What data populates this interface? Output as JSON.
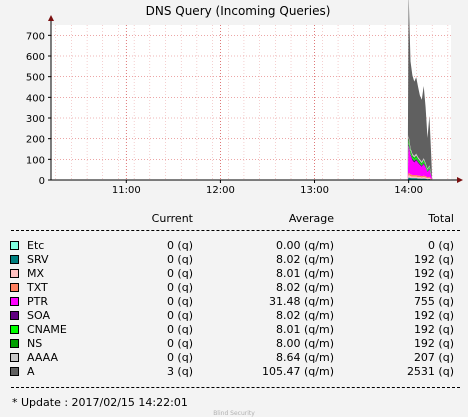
{
  "chart_data": {
    "type": "area",
    "title": "DNS Query (Incoming Queries)",
    "yticks": [
      0,
      100,
      200,
      300,
      400,
      500,
      600,
      700
    ],
    "ylim": [
      0,
      750
    ],
    "xticks": [
      "11:00",
      "12:00",
      "13:00",
      "14:00"
    ],
    "xrange_hours": [
      10.2,
      14.45
    ],
    "grid": true,
    "x": [
      13.99,
      14.0,
      14.02,
      14.04,
      14.06,
      14.08,
      14.1,
      14.12,
      14.14,
      14.16,
      14.18,
      14.2,
      14.22,
      14.24,
      14.25
    ],
    "series": [
      {
        "name": "A",
        "color": "#606060",
        "values": [
          0,
          690,
          420,
          380,
          360,
          370,
          340,
          310,
          300,
          350,
          270,
          150,
          240,
          90,
          0
        ]
      },
      {
        "name": "AAAA",
        "color": "#c8c8c8",
        "values": [
          0,
          14,
          10,
          8,
          8,
          9,
          8,
          7,
          7,
          8,
          6,
          4,
          5,
          3,
          0
        ]
      },
      {
        "name": "NS",
        "color": "#00a000",
        "values": [
          0,
          12,
          9,
          8,
          8,
          8,
          7,
          7,
          6,
          7,
          6,
          4,
          5,
          2,
          0
        ]
      },
      {
        "name": "CNAME",
        "color": "#00ff00",
        "values": [
          0,
          12,
          9,
          8,
          8,
          8,
          7,
          7,
          6,
          7,
          6,
          4,
          5,
          2,
          0
        ]
      },
      {
        "name": "SOA",
        "color": "#600080",
        "values": [
          0,
          12,
          9,
          8,
          8,
          8,
          7,
          7,
          6,
          7,
          6,
          4,
          5,
          2,
          0
        ]
      },
      {
        "name": "PTR",
        "color": "#ff00ff",
        "values": [
          0,
          130,
          90,
          70,
          60,
          70,
          60,
          50,
          45,
          55,
          40,
          25,
          35,
          15,
          0
        ]
      },
      {
        "name": "TXT",
        "color": "#ff8060",
        "values": [
          0,
          12,
          9,
          8,
          8,
          8,
          7,
          7,
          6,
          7,
          6,
          4,
          5,
          2,
          0
        ]
      },
      {
        "name": "MX",
        "color": "#ffc0c0",
        "values": [
          0,
          12,
          9,
          8,
          8,
          8,
          7,
          7,
          6,
          7,
          6,
          4,
          5,
          2,
          0
        ]
      },
      {
        "name": "SRV",
        "color": "#008080",
        "values": [
          0,
          12,
          9,
          8,
          8,
          8,
          7,
          7,
          6,
          7,
          6,
          4,
          5,
          2,
          0
        ]
      },
      {
        "name": "Etc",
        "color": "#80ffe0",
        "values": [
          0,
          0,
          0,
          0,
          0,
          0,
          0,
          0,
          0,
          0,
          0,
          0,
          0,
          0,
          0
        ]
      }
    ]
  },
  "table": {
    "headers": {
      "current": "Current",
      "average": "Average",
      "total": "Total"
    },
    "rows": [
      {
        "label": "Etc",
        "color": "#80ffe0",
        "current": "0 (q)",
        "average": "0.00 (q/m)",
        "total": "0 (q)"
      },
      {
        "label": "SRV",
        "color": "#008080",
        "current": "0 (q)",
        "average": "8.02 (q/m)",
        "total": "192 (q)"
      },
      {
        "label": "MX",
        "color": "#ffc0c0",
        "current": "0 (q)",
        "average": "8.01 (q/m)",
        "total": "192 (q)"
      },
      {
        "label": "TXT",
        "color": "#ff8060",
        "current": "0 (q)",
        "average": "8.02 (q/m)",
        "total": "192 (q)"
      },
      {
        "label": "PTR",
        "color": "#ff00ff",
        "current": "0 (q)",
        "average": "31.48 (q/m)",
        "total": "755 (q)"
      },
      {
        "label": "SOA",
        "color": "#600080",
        "current": "0 (q)",
        "average": "8.02 (q/m)",
        "total": "192 (q)"
      },
      {
        "label": "CNAME",
        "color": "#00ff00",
        "current": "0 (q)",
        "average": "8.01 (q/m)",
        "total": "192 (q)"
      },
      {
        "label": "NS",
        "color": "#00a000",
        "current": "0 (q)",
        "average": "8.00 (q/m)",
        "total": "192 (q)"
      },
      {
        "label": "AAAA",
        "color": "#c8c8c8",
        "current": "0 (q)",
        "average": "8.64 (q/m)",
        "total": "207 (q)"
      },
      {
        "label": "A",
        "color": "#606060",
        "current": "3 (q)",
        "average": "105.47 (q/m)",
        "total": "2531 (q)"
      }
    ]
  },
  "update_text": "* Update : 2017/02/15 14:22:01",
  "footer_text": "Blind Security"
}
